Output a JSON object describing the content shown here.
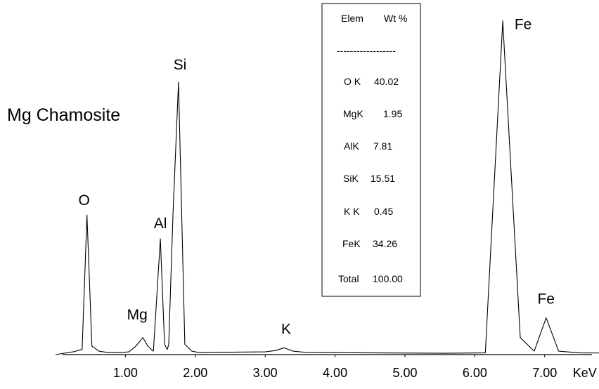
{
  "chart_data": {
    "type": "line",
    "title": "Mg Chamosite",
    "xlabel": "KeV",
    "ylabel": "",
    "grid": false,
    "xlim": [
      0,
      8.5
    ],
    "x_ticks": [
      1.0,
      2.0,
      3.0,
      4.0,
      5.0,
      6.0,
      7.0
    ],
    "x_tick_labels": [
      "1.00",
      "2.00",
      "3.00",
      "4.00",
      "5.00",
      "6.00",
      "7.00"
    ],
    "y_ticks": [],
    "ylim": [
      0,
      100
    ],
    "series": [
      {
        "x": [
          0.0,
          0.25,
          0.38,
          0.45,
          0.52,
          0.62,
          0.75,
          0.95,
          1.05,
          1.15,
          1.25,
          1.32,
          1.4,
          1.5,
          1.56,
          1.6,
          1.62,
          1.68,
          1.76,
          1.85,
          1.95,
          2.05,
          3.0,
          3.15,
          3.27,
          3.4,
          3.6,
          5.5,
          6.15,
          6.4,
          6.65,
          6.85,
          7.02,
          7.2,
          7.5,
          8.5
        ],
        "y": [
          0,
          0.8,
          1.5,
          41,
          2.5,
          1.0,
          0.6,
          0.6,
          0.8,
          2.5,
          5,
          2.5,
          1.0,
          34,
          3.0,
          1.5,
          3.0,
          41,
          80,
          3.0,
          1.0,
          0.6,
          0.8,
          1.2,
          2.0,
          1.0,
          0.6,
          0.4,
          0.5,
          98,
          5.0,
          1.0,
          10.8,
          1.0,
          0.5,
          0.4
        ]
      }
    ],
    "peak_labels": [
      {
        "text": "O",
        "x": 0.45,
        "y": 41
      },
      {
        "text": "Mg",
        "x": 1.25,
        "y": 5
      },
      {
        "text": "Al",
        "x": 1.5,
        "y": 34
      },
      {
        "text": "Si",
        "x": 1.76,
        "y": 80
      },
      {
        "text": "K",
        "x": 3.27,
        "y": 2
      },
      {
        "text": "Fe",
        "x": 6.4,
        "y": 98
      },
      {
        "text": "Fe",
        "x": 7.02,
        "y": 10.8
      }
    ],
    "composition_table": {
      "header": {
        "element": "Elem",
        "value": "Wt %"
      },
      "divider": "------------------",
      "rows": [
        {
          "element": "O K",
          "value": "40.02"
        },
        {
          "element": "MgK",
          "value": "1.95"
        },
        {
          "element": "AlK",
          "value": "7.81"
        },
        {
          "element": "SiK",
          "value": "15.51"
        },
        {
          "element": "K K",
          "value": "0.45"
        },
        {
          "element": "FeK",
          "value": "34.26"
        }
      ],
      "total": {
        "element": "Total",
        "value": "100.00"
      }
    },
    "colors": {
      "line": "#000000",
      "axis": "#000000",
      "background": "#ffffff"
    }
  }
}
